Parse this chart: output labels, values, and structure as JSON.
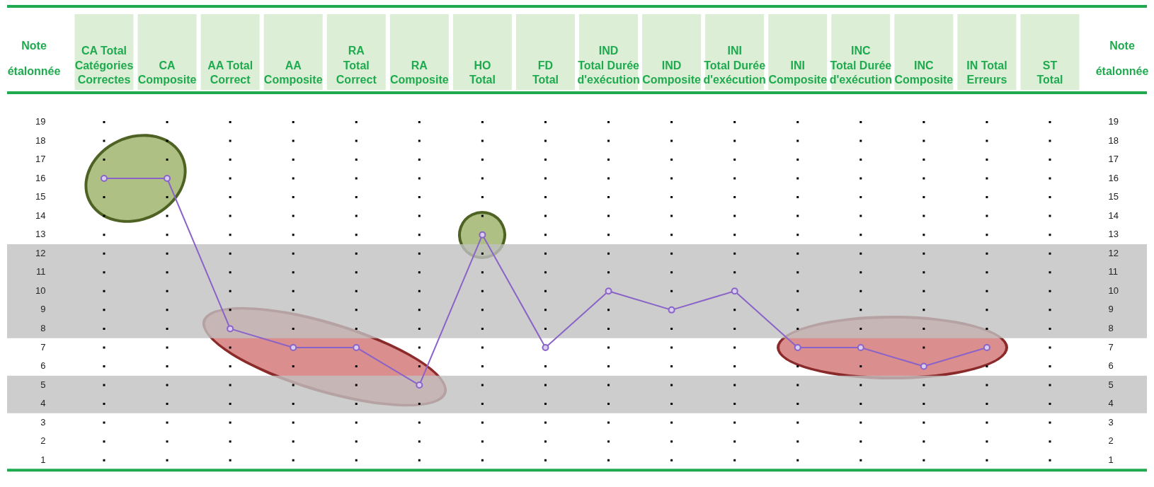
{
  "chart_data": {
    "type": "line",
    "ylabel": "Note\nétalonnée",
    "y2label": "Note\nétalonnée",
    "categories": [
      "CA Total\nCatégories\nCorrectes",
      "CA\nComposite",
      "AA Total\nCorrect",
      "AA\nComposite",
      "RA\nTotal\nCorrect",
      "RA\nComposite",
      "HO\nTotal",
      "FD\nTotal",
      "IND\nTotal Durée\nd'exécution",
      "IND\nComposite",
      "INI\nTotal Durée\nd'exécution",
      "INI\nComposite",
      "INC\nTotal Durée\nd'exécution",
      "INC\nComposite",
      "IN Total\nErreurs",
      "ST\nTotal"
    ],
    "series": [
      {
        "color": "#8a63c8",
        "values": [
          16,
          16,
          8,
          7,
          7,
          5,
          13,
          7,
          10,
          9,
          10,
          7,
          7,
          6,
          7,
          null
        ]
      }
    ],
    "ylim": [
      1,
      19
    ],
    "yticks": [
      1,
      2,
      3,
      4,
      5,
      6,
      7,
      8,
      9,
      10,
      11,
      12,
      13,
      14,
      15,
      16,
      17,
      18,
      19
    ],
    "y2lim": [
      1,
      19
    ],
    "y2ticks": [
      1,
      2,
      3,
      4,
      5,
      6,
      7,
      8,
      9,
      10,
      11,
      12,
      13,
      14,
      15,
      16,
      17,
      18,
      19
    ],
    "bands": [
      {
        "axis": "y",
        "from": 7.5,
        "to": 12.5,
        "color": "#c0c0c0"
      },
      {
        "axis": "y",
        "from": 3.5,
        "to": 5.5,
        "color": "#c0c0c0"
      }
    ],
    "grid": "x",
    "legend": false,
    "marker": "circle",
    "line_style": "solid"
  }
}
